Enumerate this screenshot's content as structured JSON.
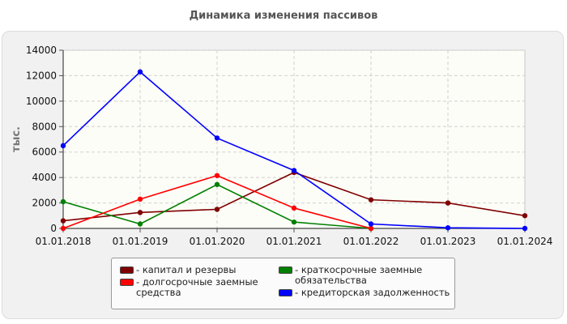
{
  "chart_data": {
    "type": "line",
    "title": "Динамика изменения пассивов",
    "ylabel": "тыс.",
    "xlabel": "",
    "categories": [
      "01.01.2018",
      "01.01.2019",
      "01.01.2020",
      "01.01.2021",
      "01.01.2022",
      "01.01.2023",
      "01.01.2024"
    ],
    "ylim": [
      0,
      14000
    ],
    "yticks": [
      0,
      2000,
      4000,
      6000,
      8000,
      10000,
      12000,
      14000
    ],
    "grid": true,
    "legend_position": "bottom",
    "series": [
      {
        "name": "капитал и резервы",
        "color": "#7f0000",
        "values": [
          600,
          1250,
          1500,
          4400,
          2250,
          2000,
          1000
        ]
      },
      {
        "name": "краткосрочные заемные обязательства",
        "color": "#008000",
        "values": [
          2100,
          350,
          3450,
          500,
          0,
          null,
          null
        ]
      },
      {
        "name": "долгосрочные заемные средства",
        "color": "#ff0000",
        "values": [
          0,
          2300,
          4150,
          1600,
          0,
          null,
          null
        ]
      },
      {
        "name": "кредиторская задолженность",
        "color": "#0000ff",
        "values": [
          6500,
          12300,
          7100,
          4550,
          350,
          50,
          0
        ]
      }
    ]
  }
}
